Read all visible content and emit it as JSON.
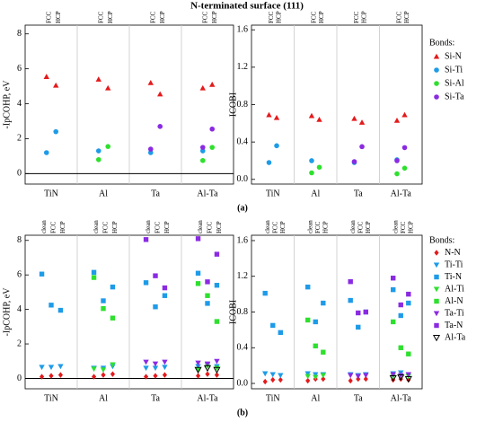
{
  "title": "N-terminated surface (111)",
  "chart_data": [
    {
      "type": "scatter",
      "panel_label": "(a)",
      "legend_title": "Bonds:",
      "categories": [
        "TiN",
        "Al",
        "Ta",
        "Al-Ta"
      ],
      "sites": [
        "FCC",
        "HCP"
      ],
      "ylabel": "-IpCOHP, eV",
      "ylim": [
        -0.6,
        8.5
      ],
      "yticks": [
        0,
        2,
        4,
        6,
        8
      ],
      "y2label": "ICOBI",
      "y2lim": [
        -0.05,
        1.65
      ],
      "y2ticks": [
        {
          "value": 0,
          "label": "0.0"
        },
        0.4,
        0.8,
        1.2,
        1.6
      ],
      "series": [
        {
          "name": "Si-N",
          "color": "#e41a1c",
          "marker": "triangle-up",
          "values": [
            [
              5.55,
              5.05
            ],
            [
              5.4,
              4.9
            ],
            [
              5.2,
              4.55
            ],
            [
              4.9,
              5.1
            ]
          ],
          "values2": [
            [
              0.69,
              0.66
            ],
            [
              0.68,
              0.64
            ],
            [
              0.65,
              0.61
            ],
            [
              0.63,
              0.69
            ]
          ]
        },
        {
          "name": "Si-Ti",
          "color": "#1e9be8",
          "marker": "circle",
          "values": [
            [
              1.2,
              2.4
            ],
            [
              1.3,
              null
            ],
            [
              1.2,
              null
            ],
            [
              1.3,
              null
            ]
          ],
          "values2": [
            [
              0.18,
              0.36
            ],
            [
              0.2,
              null
            ],
            [
              0.18,
              null
            ],
            [
              0.21,
              null
            ]
          ]
        },
        {
          "name": "Si-Al",
          "color": "#2ee02e",
          "marker": "circle",
          "values": [
            [
              null,
              null
            ],
            [
              0.8,
              1.55
            ],
            [
              null,
              null
            ],
            [
              0.75,
              1.5
            ]
          ],
          "values2": [
            [
              null,
              null
            ],
            [
              0.07,
              0.13
            ],
            [
              null,
              null
            ],
            [
              0.06,
              0.12
            ]
          ]
        },
        {
          "name": "Si-Ta",
          "color": "#8a2be2",
          "marker": "circle",
          "values": [
            [
              null,
              null
            ],
            [
              null,
              null
            ],
            [
              1.4,
              2.7
            ],
            [
              1.5,
              2.55
            ]
          ],
          "values2": [
            [
              null,
              null
            ],
            [
              null,
              null
            ],
            [
              0.19,
              0.35
            ],
            [
              0.2,
              0.34
            ]
          ]
        }
      ]
    },
    {
      "type": "scatter",
      "panel_label": "(b)",
      "legend_title": "Bonds:",
      "categories": [
        "TiN",
        "Al",
        "Ta",
        "Al-Ta"
      ],
      "sites": [
        "clean",
        "FCC",
        "HCP"
      ],
      "ylabel": "-IpCOHP, eV",
      "ylim": [
        -0.6,
        8.3
      ],
      "yticks": [
        0,
        2,
        4,
        6,
        8
      ],
      "y2label": "ICOBI",
      "y2lim": [
        -0.06,
        1.66
      ],
      "y2ticks": [
        {
          "value": 0,
          "label": "0.0"
        },
        0.4,
        0.8,
        1.2,
        1.6
      ],
      "series": [
        {
          "name": "N-N",
          "color": "#e41a1c",
          "marker": "diamond",
          "values": [
            [
              0.1,
              0.15,
              0.2
            ],
            [
              0.1,
              0.2,
              0.25
            ],
            [
              0.1,
              0.15,
              0.2
            ],
            [
              0.15,
              0.25,
              0.2
            ]
          ],
          "values2": [
            [
              0.02,
              0.04,
              0.04
            ],
            [
              0.03,
              0.05,
              0.05
            ],
            [
              0.03,
              0.05,
              0.05
            ],
            [
              0.04,
              0.05,
              0.04
            ]
          ]
        },
        {
          "name": "Ti-Ti",
          "color": "#1e9be8",
          "marker": "triangle-down",
          "values": [
            [
              0.65,
              0.65,
              0.7
            ],
            [
              0.6,
              0.6,
              0.7
            ],
            [
              0.6,
              0.6,
              0.65
            ],
            [
              0.7,
              0.8,
              0.7
            ]
          ],
          "values2": [
            [
              0.11,
              0.1,
              0.09
            ],
            [
              0.11,
              0.1,
              0.1
            ],
            [
              0.1,
              0.09,
              0.1
            ],
            [
              0.11,
              0.12,
              0.1
            ]
          ]
        },
        {
          "name": "Ti-N",
          "color": "#1e9be8",
          "marker": "square",
          "values": [
            [
              6.05,
              4.25,
              3.95
            ],
            [
              6.15,
              4.5,
              5.3
            ],
            [
              5.55,
              4.15,
              4.8
            ],
            [
              6.1,
              4.35,
              5.4
            ]
          ],
          "values2": [
            [
              1.01,
              0.65,
              0.57
            ],
            [
              1.08,
              0.69,
              0.9
            ],
            [
              0.93,
              0.63,
              0.8
            ],
            [
              1.05,
              0.76,
              0.9
            ]
          ]
        },
        {
          "name": "Al-Ti",
          "color": "#2ee02e",
          "marker": "triangle-down",
          "values": [
            [
              null,
              null,
              null
            ],
            [
              0.55,
              0.5,
              0.8
            ],
            [
              null,
              null,
              null
            ],
            [
              0.5,
              0.7,
              0.6
            ]
          ],
          "values2": [
            [
              null,
              null,
              null
            ],
            [
              0.08,
              0.07,
              0.09
            ],
            [
              null,
              null,
              null
            ],
            [
              0.08,
              0.09,
              0.08
            ]
          ]
        },
        {
          "name": "Al-N",
          "color": "#2ee02e",
          "marker": "square",
          "values": [
            [
              null,
              null,
              null
            ],
            [
              5.85,
              4.05,
              3.5
            ],
            [
              null,
              null,
              null
            ],
            [
              5.5,
              4.8,
              3.3
            ]
          ],
          "values2": [
            [
              null,
              null,
              null
            ],
            [
              0.71,
              0.42,
              0.35
            ],
            [
              null,
              null,
              null
            ],
            [
              0.69,
              0.4,
              0.33
            ]
          ]
        },
        {
          "name": "Ta-Ti",
          "color": "#8a2be2",
          "marker": "triangle-down",
          "values": [
            [
              null,
              null,
              null
            ],
            [
              null,
              null,
              null
            ],
            [
              0.95,
              0.85,
              0.95
            ],
            [
              0.9,
              0.85,
              1.0
            ]
          ],
          "values2": [
            [
              null,
              null,
              null
            ],
            [
              null,
              null,
              null
            ],
            [
              0.09,
              0.08,
              0.09
            ],
            [
              0.1,
              0.09,
              0.1
            ]
          ]
        },
        {
          "name": "Ta-N",
          "color": "#8a2be2",
          "marker": "square",
          "values": [
            [
              null,
              null,
              null
            ],
            [
              null,
              null,
              null
            ],
            [
              8.05,
              5.95,
              5.25
            ],
            [
              8.1,
              5.6,
              7.2
            ]
          ],
          "values2": [
            [
              null,
              null,
              null
            ],
            [
              null,
              null,
              null
            ],
            [
              1.14,
              0.79,
              0.8
            ],
            [
              1.18,
              0.88,
              1.0
            ]
          ]
        },
        {
          "name": "Al-Ta",
          "color": "#000000",
          "marker": "triangle-down-open",
          "values": [
            [
              null,
              null,
              null
            ],
            [
              null,
              null,
              null
            ],
            [
              null,
              null,
              null
            ],
            [
              0.5,
              0.6,
              0.5
            ]
          ],
          "values2": [
            [
              null,
              null,
              null
            ],
            [
              null,
              null,
              null
            ],
            [
              null,
              null,
              null
            ],
            [
              0.06,
              0.07,
              0.05
            ]
          ]
        }
      ]
    }
  ]
}
